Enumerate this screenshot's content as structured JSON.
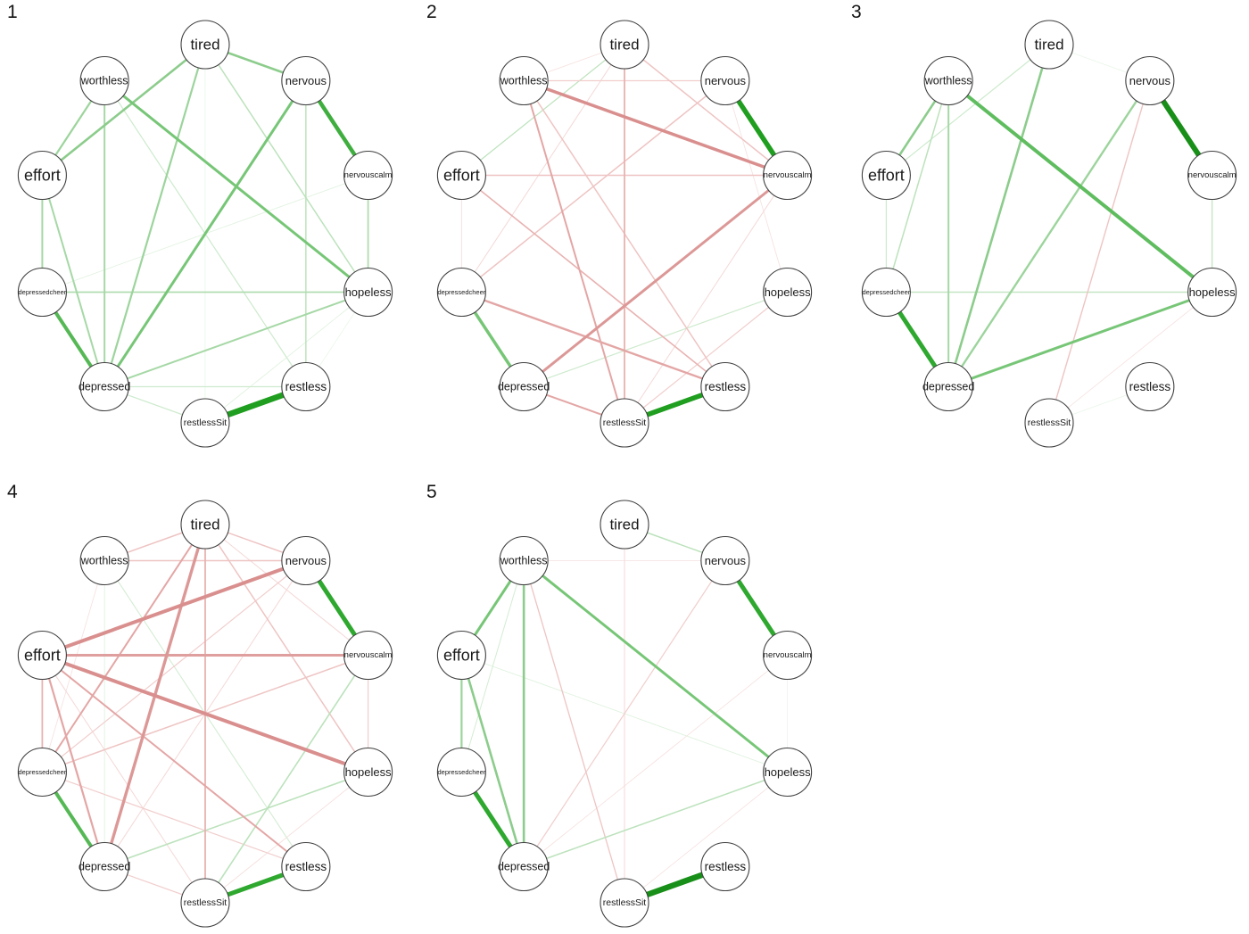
{
  "figure_title": "",
  "chart_data": {
    "type": "network",
    "description": "Five circular-layout psychological symptom networks; green edges = positive associations, red/pink edges = negative associations; edge width/saturation = association strength",
    "edge_semantics": {
      "positive_color": "#1f9e1f",
      "negative_color": "#d98f8e"
    },
    "node_style": {
      "fill": "#ffffff",
      "stroke": "#3f3f3f",
      "radius": 27
    },
    "nodes": [
      {
        "id": "tired",
        "label": "tired",
        "fontSize": 17
      },
      {
        "id": "nervous",
        "label": "nervous",
        "fontSize": 13
      },
      {
        "id": "nervouscalm",
        "label": "nervouscalm",
        "fontSize": 9.5
      },
      {
        "id": "hopeless",
        "label": "hopeless",
        "fontSize": 13
      },
      {
        "id": "restless",
        "label": "restless",
        "fontSize": 13.5
      },
      {
        "id": "restlessSit",
        "label": "restlessSit",
        "fontSize": 10.5
      },
      {
        "id": "depressed",
        "label": "depressed",
        "fontSize": 12.5
      },
      {
        "id": "depressedcheer",
        "label": "depressedcheer",
        "fontSize": 7.5
      },
      {
        "id": "effort",
        "label": "effort",
        "fontSize": 18
      },
      {
        "id": "worthless",
        "label": "worthless",
        "fontSize": 12.5
      }
    ],
    "panels": [
      {
        "label": "1",
        "edges": [
          [
            "restlessSit",
            "restless",
            "#1f9e1f",
            6.5
          ],
          [
            "nervous",
            "nervouscalm",
            "#3fae3f",
            4.5
          ],
          [
            "depressedcheer",
            "depressed",
            "#55b855",
            4
          ],
          [
            "worthless",
            "hopeless",
            "#77c677",
            3
          ],
          [
            "nervous",
            "depressed",
            "#77c677",
            3
          ],
          [
            "tired",
            "effort",
            "#8ccc8c",
            2.6
          ],
          [
            "tired",
            "nervous",
            "#8ccc8c",
            2.6
          ],
          [
            "tired",
            "depressed",
            "#9cd49c",
            2.2
          ],
          [
            "worthless",
            "effort",
            "#9cd49c",
            2.2
          ],
          [
            "worthless",
            "depressed",
            "#a6d8a6",
            2
          ],
          [
            "effort",
            "depressed",
            "#a6d8a6",
            2
          ],
          [
            "effort",
            "depressedcheer",
            "#a6d8a6",
            2
          ],
          [
            "hopeless",
            "depressed",
            "#a6d8a6",
            2
          ],
          [
            "depressedcheer",
            "hopeless",
            "#b0dcb0",
            1.8
          ],
          [
            "nervouscalm",
            "hopeless",
            "#b0dcb0",
            1.8
          ],
          [
            "tired",
            "hopeless",
            "#bce2bc",
            1.5
          ],
          [
            "nervous",
            "restless",
            "#bce2bc",
            1.5
          ],
          [
            "worthless",
            "restless",
            "#cdeacd",
            1.2
          ],
          [
            "depressed",
            "restless",
            "#cdeacd",
            1.2
          ],
          [
            "depressed",
            "restlessSit",
            "#cdeacd",
            1.2
          ],
          [
            "hopeless",
            "restlessSit",
            "#e2f3e2",
            0.9
          ],
          [
            "nervouscalm",
            "depressedcheer",
            "#e2f3e2",
            0.9
          ],
          [
            "tired",
            "restlessSit",
            "#e9f6e9",
            0.8
          ],
          [
            "hopeless",
            "restless",
            "#e9f6e9",
            0.8
          ]
        ]
      },
      {
        "label": "2",
        "edges": [
          [
            "nervous",
            "nervouscalm",
            "#1f9e1f",
            5.5
          ],
          [
            "restlessSit",
            "restless",
            "#1f9e1f",
            5.5
          ],
          [
            "depressedcheer",
            "depressed",
            "#77c677",
            3.5
          ],
          [
            "tired",
            "effort",
            "#bce2bc",
            1.2
          ],
          [
            "hopeless",
            "depressed",
            "#cdeacd",
            1.2
          ],
          [
            "worthless",
            "nervouscalm",
            "#d98f8e",
            3.5
          ],
          [
            "nervouscalm",
            "depressed",
            "#dc9897",
            3
          ],
          [
            "depressedcheer",
            "restless",
            "#e3a6a5",
            2.4
          ],
          [
            "depressed",
            "restlessSit",
            "#e3a6a5",
            2
          ],
          [
            "worthless",
            "restlessSit",
            "#e3a6a5",
            2
          ],
          [
            "tired",
            "restlessSit",
            "#e8b2b1",
            1.8
          ],
          [
            "effort",
            "restless",
            "#e8b2b1",
            1.6
          ],
          [
            "effort",
            "nervouscalm",
            "#eec4c3",
            1.5
          ],
          [
            "tired",
            "nervouscalm",
            "#eec4c3",
            1.5
          ],
          [
            "nervous",
            "depressedcheer",
            "#eec4c3",
            1.5
          ],
          [
            "worthless",
            "restless",
            "#eec4c3",
            1.5
          ],
          [
            "worthless",
            "nervous",
            "#f1cecd",
            1.2
          ],
          [
            "hopeless",
            "restlessSit",
            "#f1cecd",
            1.2
          ],
          [
            "nervouscalm",
            "restlessSit",
            "#f4d8d7",
            1
          ],
          [
            "tired",
            "depressedcheer",
            "#f4d8d7",
            1
          ],
          [
            "effort",
            "depressedcheer",
            "#f6e0df",
            0.9
          ],
          [
            "tired",
            "worthless",
            "#f6e0df",
            0.8
          ],
          [
            "nervous",
            "hopeless",
            "#f6e0df",
            0.8
          ]
        ]
      },
      {
        "label": "3",
        "edges": [
          [
            "nervous",
            "nervouscalm",
            "#188f18",
            6
          ],
          [
            "depressedcheer",
            "depressed",
            "#2ea82e",
            5
          ],
          [
            "worthless",
            "hopeless",
            "#5fbd5f",
            4
          ],
          [
            "depressed",
            "hopeless",
            "#77c677",
            3
          ],
          [
            "tired",
            "depressed",
            "#8ccc8c",
            2.6
          ],
          [
            "worthless",
            "effort",
            "#8ccc8c",
            2.6
          ],
          [
            "nervous",
            "depressed",
            "#9cd49c",
            2.4
          ],
          [
            "worthless",
            "depressed",
            "#a6d8a6",
            2
          ],
          [
            "worthless",
            "depressedcheer",
            "#bce2bc",
            1.5
          ],
          [
            "depressedcheer",
            "hopeless",
            "#c4e6c4",
            1.4
          ],
          [
            "nervouscalm",
            "hopeless",
            "#c4e6c4",
            1.4
          ],
          [
            "effort",
            "depressedcheer",
            "#cdeacd",
            1.2
          ],
          [
            "tired",
            "effort",
            "#cdeacd",
            1.2
          ],
          [
            "nervous",
            "restlessSit",
            "#eec4c3",
            1.4
          ],
          [
            "hopeless",
            "restlessSit",
            "#f6e0df",
            0.8
          ],
          [
            "restlessSit",
            "restless",
            "#e9f6e9",
            0.8
          ],
          [
            "tired",
            "nervous",
            "#e9f6e9",
            0.8
          ]
        ]
      },
      {
        "label": "4",
        "edges": [
          [
            "nervous",
            "nervouscalm",
            "#2ea82e",
            5
          ],
          [
            "restlessSit",
            "restless",
            "#2ea82e",
            5
          ],
          [
            "depressedcheer",
            "depressed",
            "#55b855",
            4
          ],
          [
            "nervouscalm",
            "restlessSit",
            "#bce2bc",
            1.6
          ],
          [
            "hopeless",
            "depressed",
            "#bce2bc",
            1.6
          ],
          [
            "worthless",
            "restless",
            "#d4ecd4",
            1.1
          ],
          [
            "worthless",
            "depressed",
            "#dff2df",
            0.9
          ],
          [
            "effort",
            "nervous",
            "#d98f8e",
            4
          ],
          [
            "effort",
            "hopeless",
            "#d98f8e",
            4
          ],
          [
            "tired",
            "depressed",
            "#dc9897",
            3.4
          ],
          [
            "effort",
            "nervouscalm",
            "#df9f9e",
            3
          ],
          [
            "effort",
            "depressed",
            "#e3a6a5",
            2.2
          ],
          [
            "effort",
            "restless",
            "#e3a6a5",
            2
          ],
          [
            "tired",
            "depressedcheer",
            "#e3a6a5",
            2
          ],
          [
            "tired",
            "restlessSit",
            "#e8b2b1",
            1.8
          ],
          [
            "effort",
            "depressedcheer",
            "#e8b2b1",
            1.8
          ],
          [
            "tired",
            "worthless",
            "#eec4c3",
            1.5
          ],
          [
            "tired",
            "hopeless",
            "#eec4c3",
            1.5
          ],
          [
            "tired",
            "nervous",
            "#eec4c3",
            1.5
          ],
          [
            "worthless",
            "nervous",
            "#eec4c3",
            1.5
          ],
          [
            "nervouscalm",
            "depressedcheer",
            "#eec4c3",
            1.5
          ],
          [
            "depressedcheer",
            "restless",
            "#f1cecd",
            1.2
          ],
          [
            "depressed",
            "restlessSit",
            "#f1cecd",
            1.2
          ],
          [
            "nervous",
            "depressedcheer",
            "#f1cecd",
            1.2
          ],
          [
            "nervouscalm",
            "hopeless",
            "#f1cecd",
            1.2
          ],
          [
            "effort",
            "restlessSit",
            "#f4d8d7",
            1
          ],
          [
            "tired",
            "nervouscalm",
            "#f4d8d7",
            1
          ],
          [
            "nervous",
            "depressed",
            "#f4d8d7",
            1
          ],
          [
            "hopeless",
            "restlessSit",
            "#f6e0df",
            0.9
          ],
          [
            "worthless",
            "depressedcheer",
            "#f6e0df",
            0.8
          ]
        ]
      },
      {
        "label": "5",
        "edges": [
          [
            "restlessSit",
            "restless",
            "#188f18",
            6.5
          ],
          [
            "nervous",
            "nervouscalm",
            "#2ea82e",
            5
          ],
          [
            "depressedcheer",
            "depressed",
            "#2ea82e",
            5
          ],
          [
            "worthless",
            "hopeless",
            "#77c677",
            3
          ],
          [
            "worthless",
            "effort",
            "#77c677",
            3
          ],
          [
            "worthless",
            "depressed",
            "#8ccc8c",
            2.6
          ],
          [
            "effort",
            "depressed",
            "#8ccc8c",
            2.6
          ],
          [
            "effort",
            "depressedcheer",
            "#9cd49c",
            2.2
          ],
          [
            "depressed",
            "hopeless",
            "#bce2bc",
            1.5
          ],
          [
            "tired",
            "nervous",
            "#bce2bc",
            1.5
          ],
          [
            "worthless",
            "depressedcheer",
            "#d4ecd4",
            1
          ],
          [
            "effort",
            "hopeless",
            "#dff2df",
            0.9
          ],
          [
            "nervouscalm",
            "hopeless",
            "#e9f6e9",
            0.8
          ],
          [
            "worthless",
            "restlessSit",
            "#eec4c3",
            1.3
          ],
          [
            "nervous",
            "depressed",
            "#f1cecd",
            1.2
          ],
          [
            "tired",
            "restlessSit",
            "#f4d8d7",
            1
          ],
          [
            "worthless",
            "nervous",
            "#f6e0df",
            0.8
          ],
          [
            "nervouscalm",
            "depressed",
            "#f6e0df",
            0.8
          ],
          [
            "hopeless",
            "restlessSit",
            "#f6e0df",
            0.8
          ]
        ]
      }
    ]
  }
}
